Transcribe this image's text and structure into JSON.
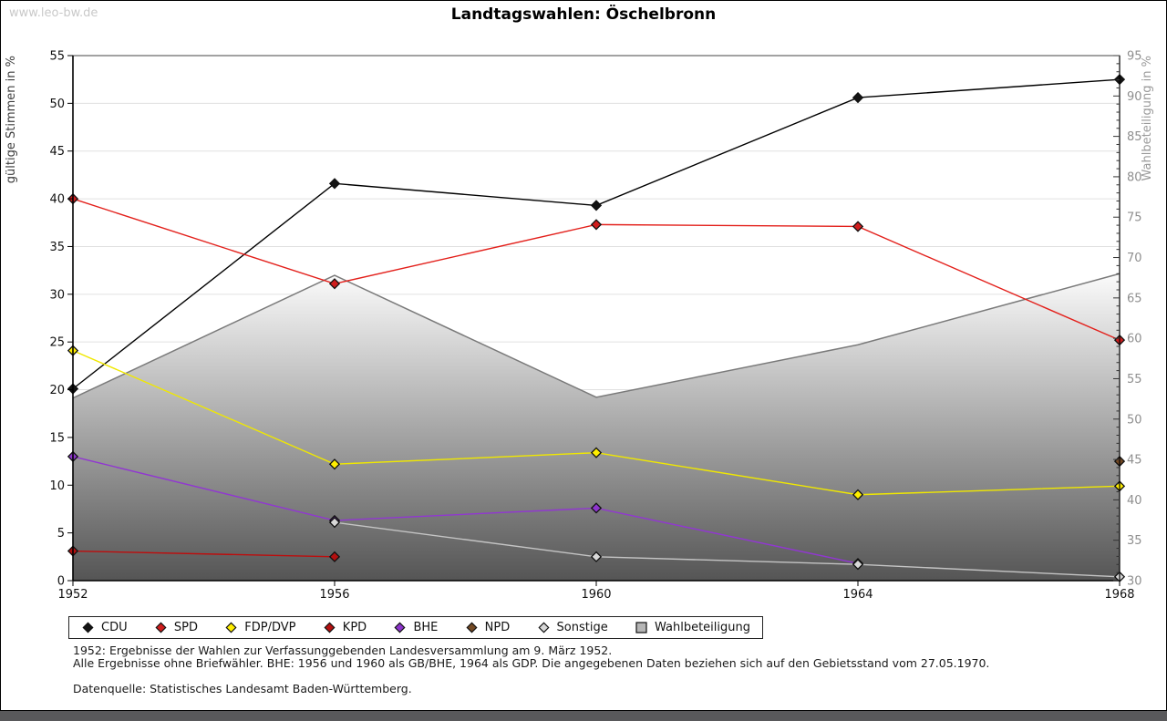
{
  "page": {
    "watermark": "www.leo-bw.de",
    "title": "Landtagswahlen: Öschelbronn"
  },
  "chart_data": {
    "type": "line",
    "title": "Landtagswahlen: Öschelbronn",
    "x": [
      "1952",
      "1956",
      "1960",
      "1964",
      "1968"
    ],
    "left_axis": {
      "label": "gültige Stimmen in %",
      "min": 0,
      "max": 55,
      "step": 5
    },
    "right_axis": {
      "label": "Wahlbeteiligung in %",
      "min": 30,
      "max": 95,
      "step": 5,
      "minor_step": 1
    },
    "grid": "horizontal",
    "legend_position": "bottom",
    "series": [
      {
        "name": "CDU",
        "type": "line",
        "axis": "left",
        "color": "#000000",
        "marker_fill": "#141414",
        "values": [
          20.1,
          41.6,
          39.3,
          50.6,
          52.5
        ]
      },
      {
        "name": "SPD",
        "type": "line",
        "axis": "left",
        "color": "#e3201b",
        "marker_fill": "#d01d1d",
        "values": [
          40.0,
          31.1,
          37.3,
          37.1,
          25.2
        ]
      },
      {
        "name": "FDP/DVP",
        "type": "line",
        "axis": "left",
        "color": "#f0e800",
        "marker_fill": "#ffee00",
        "values": [
          24.1,
          12.2,
          13.4,
          9.0,
          9.9
        ]
      },
      {
        "name": "KPD",
        "type": "line",
        "axis": "left",
        "color": "#bd0d0d",
        "marker_fill": "#b41010",
        "values": [
          3.1,
          2.5,
          null,
          null,
          null
        ]
      },
      {
        "name": "BHE",
        "type": "line",
        "axis": "left",
        "color": "#9137d1",
        "marker_fill": "#8d35cc",
        "values": [
          13.0,
          6.3,
          7.6,
          1.8,
          null
        ]
      },
      {
        "name": "NPD",
        "type": "line",
        "axis": "left",
        "color": "#744a24",
        "marker_fill": "#744a24",
        "values": [
          null,
          null,
          null,
          null,
          12.5
        ]
      },
      {
        "name": "Sonstige",
        "type": "line",
        "axis": "left",
        "color": "#c4c4c4",
        "marker_fill": "#d8d8d8",
        "values": [
          null,
          6.1,
          2.5,
          1.7,
          0.4
        ]
      },
      {
        "name": "Wahlbeteiligung",
        "type": "area",
        "axis": "right",
        "color": "#7a7a7a",
        "marker_fill": "#b5b5b5",
        "gradient_top": "#fbfbfb",
        "gradient_bottom": "#555555",
        "values": [
          52.6,
          67.8,
          52.7,
          59.2,
          68.0
        ]
      }
    ]
  },
  "footer": {
    "line1": "1952: Ergebnisse der Wahlen zur Verfassunggebenden Landesversammlung am 9. März 1952.",
    "line2": "Alle Ergebnisse ohne Briefwähler. BHE: 1956 und 1960 als GB/BHE, 1964 als GDP. Die angegebenen Daten beziehen sich auf den Gebietsstand vom 27.05.1970.",
    "source": "Datenquelle: Statistisches Landesamt Baden-Württemberg."
  }
}
